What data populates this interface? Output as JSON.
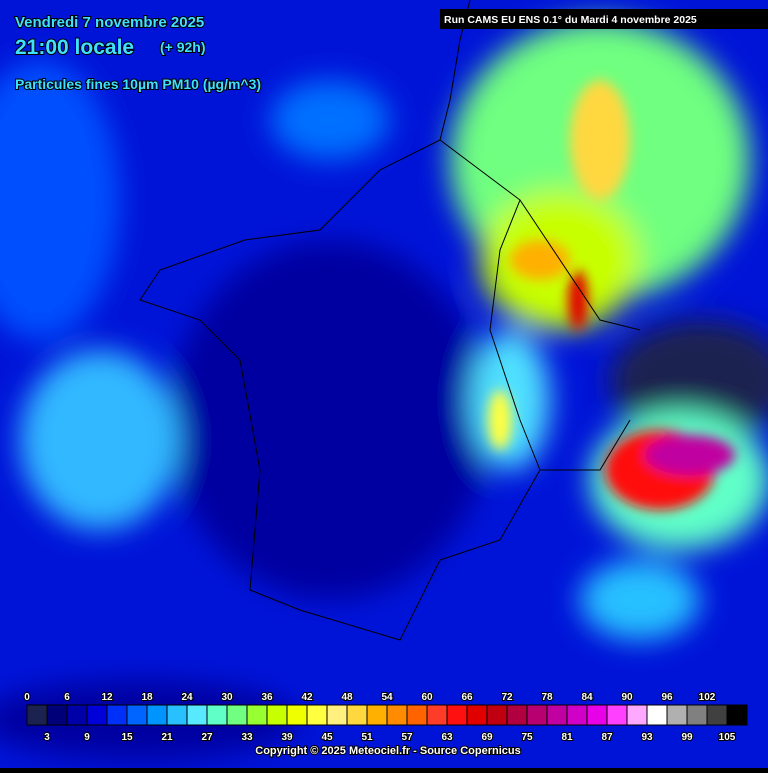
{
  "header": {
    "date": "Vendredi 7 novembre 2025",
    "time": "21:00 locale",
    "lead": "(+ 92h)",
    "variable": "Particules fines 10µm PM10 (µg/m^3)",
    "run": "Run CAMS EU ENS 0.1° du Mardi 4 novembre 2025"
  },
  "legend": {
    "top_ticks": [
      0,
      6,
      12,
      18,
      24,
      30,
      36,
      42,
      48,
      54,
      60,
      66,
      72,
      78,
      84,
      90,
      96,
      102
    ],
    "bottom_ticks": [
      3,
      9,
      15,
      21,
      27,
      33,
      39,
      45,
      51,
      57,
      63,
      69,
      75,
      81,
      87,
      93,
      99,
      105
    ],
    "colors": [
      "#1c2250",
      "#000078",
      "#0000a8",
      "#0000d8",
      "#0030f8",
      "#0064ff",
      "#0094ff",
      "#28c0ff",
      "#58e8ff",
      "#60ffc8",
      "#70ff80",
      "#98ff30",
      "#c8ff00",
      "#f0ff00",
      "#ffff40",
      "#fff080",
      "#ffd840",
      "#ffb000",
      "#ff8c00",
      "#ff6400",
      "#ff3c28",
      "#ff1010",
      "#e00000",
      "#c00010",
      "#b00040",
      "#b80070",
      "#c000a0",
      "#d000c8",
      "#e800e8",
      "#ff40ff",
      "#ffa8ff",
      "#ffffff",
      "#b0b0b0",
      "#808080",
      "#404040",
      "#000000"
    ]
  },
  "footer": "Copyright © 2025 Meteociel.fr - Source Copernicus"
}
